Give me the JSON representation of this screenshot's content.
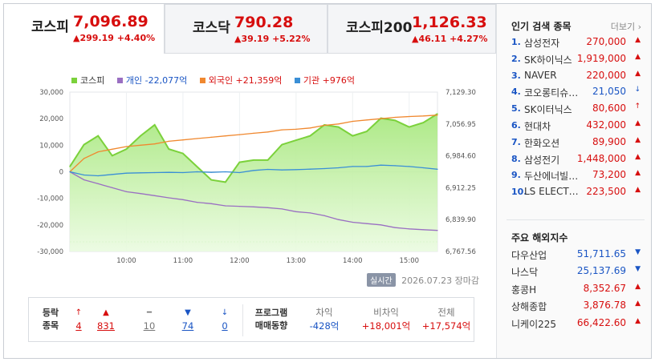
{
  "tabs": [
    {
      "name": "코스피",
      "value": "7,096.89",
      "change": "▲299.19 +4.40%"
    },
    {
      "name": "코스닥",
      "value": "790.28",
      "change": "▲39.19 +5.22%"
    },
    {
      "name": "코스피200",
      "value": "1,126.33",
      "change": "▲46.11 +4.27%"
    }
  ],
  "legend": [
    {
      "label": "코스피",
      "color": "#7bd13b"
    },
    {
      "label": "개인 -22,077억",
      "color": "#9a6fc2"
    },
    {
      "label": "외국인 +21,359억",
      "color": "#f0882f"
    },
    {
      "label": "기관 +976억",
      "color": "#3a8fd6"
    }
  ],
  "chart_data": {
    "type": "line",
    "x": [
      "09:00",
      "09:15",
      "09:30",
      "09:45",
      "10:00",
      "10:15",
      "10:30",
      "10:45",
      "11:00",
      "11:15",
      "11:30",
      "11:45",
      "12:00",
      "12:15",
      "12:30",
      "12:45",
      "13:00",
      "13:15",
      "13:30",
      "13:45",
      "14:00",
      "14:15",
      "14:30",
      "14:45",
      "15:00",
      "15:15",
      "15:30"
    ],
    "x_tick_labels": [
      "10:00",
      "11:00",
      "12:00",
      "13:00",
      "14:00",
      "15:00"
    ],
    "y_left_ticks": [
      "30,000",
      "20,000",
      "10,000",
      "0",
      "-10,000",
      "-20,000",
      "-30,000"
    ],
    "y_right_ticks": [
      "7,129.30",
      "7,056.95",
      "6,984.60",
      "6,912.25",
      "6,839.90",
      "6,767.56"
    ],
    "ylim_left": [
      -30000,
      30000
    ],
    "ylim_right": [
      6767.56,
      7129.3
    ],
    "series": [
      {
        "name": "코스피",
        "axis": "right",
        "color": "#7bd13b",
        "values": [
          6960,
          7010,
          7030,
          6985,
          7000,
          7030,
          7055,
          7000,
          6990,
          6960,
          6930,
          6925,
          6970,
          6975,
          6975,
          7010,
          7020,
          7030,
          7055,
          7050,
          7030,
          7040,
          7070,
          7065,
          7050,
          7060,
          7080
        ]
      },
      {
        "name": "개인",
        "axis": "left",
        "color": "#9a6fc2",
        "values": [
          0,
          -3000,
          -4500,
          -6000,
          -7500,
          -8200,
          -9000,
          -9800,
          -10500,
          -11500,
          -12000,
          -12800,
          -13000,
          -13200,
          -13500,
          -14000,
          -15000,
          -15500,
          -16500,
          -18000,
          -19000,
          -19500,
          -20000,
          -21000,
          -21500,
          -21800,
          -22077
        ]
      },
      {
        "name": "외국인",
        "axis": "left",
        "color": "#f0882f",
        "values": [
          0,
          5000,
          7500,
          8500,
          9500,
          10000,
          10500,
          11500,
          12000,
          12500,
          13000,
          13500,
          14000,
          14500,
          15000,
          15800,
          16000,
          16500,
          17500,
          18000,
          19000,
          19500,
          20000,
          20500,
          20800,
          21000,
          21359
        ]
      },
      {
        "name": "기관",
        "axis": "left",
        "color": "#3a8fd6",
        "values": [
          0,
          -1200,
          -1500,
          -1000,
          -500,
          -400,
          -300,
          -200,
          -300,
          0,
          -200,
          0,
          -300,
          500,
          900,
          700,
          800,
          1000,
          1200,
          1500,
          2000,
          2000,
          2500,
          2300,
          2000,
          1500,
          976
        ]
      }
    ],
    "grid": true,
    "legend_position": "top"
  },
  "status": {
    "badge": "실시간",
    "date": "2026.07.23",
    "state": "장마감"
  },
  "breadth": {
    "label_line1": "등락",
    "label_line2": "종목",
    "items": [
      {
        "symbol": "↑",
        "count": "4",
        "tone": "red"
      },
      {
        "symbol": "▲",
        "count": "831",
        "tone": "red"
      },
      {
        "symbol": "━",
        "count": "10",
        "tone": "gray"
      },
      {
        "symbol": "▼",
        "count": "74",
        "tone": "blue"
      },
      {
        "symbol": "↓",
        "count": "0",
        "tone": "blue"
      }
    ]
  },
  "program": {
    "label_line1": "프로그램",
    "label_line2": "매매동향",
    "items": [
      {
        "label": "차익",
        "value": "-428억",
        "tone": "blue"
      },
      {
        "label": "비차익",
        "value": "+18,001억",
        "tone": "red"
      },
      {
        "label": "전체",
        "value": "+17,574억",
        "tone": "red"
      }
    ]
  },
  "popular": {
    "title": "인기 검색 종목",
    "more": "더보기",
    "items": [
      {
        "rank": "1.",
        "name": "삼성전자",
        "value": "270,000",
        "dir": "▲",
        "tone": "red"
      },
      {
        "rank": "2.",
        "name": "SK하이닉스",
        "value": "1,919,000",
        "dir": "▲",
        "tone": "red"
      },
      {
        "rank": "3.",
        "name": "NAVER",
        "value": "220,000",
        "dir": "▲",
        "tone": "red"
      },
      {
        "rank": "4.",
        "name": "코오롱티슈…",
        "value": "21,050",
        "dir": "↓",
        "tone": "blue"
      },
      {
        "rank": "5.",
        "name": "SK이터닉스",
        "value": "80,600",
        "dir": "↑",
        "tone": "red"
      },
      {
        "rank": "6.",
        "name": "현대차",
        "value": "432,000",
        "dir": "▲",
        "tone": "red"
      },
      {
        "rank": "7.",
        "name": "한화오션",
        "value": "89,900",
        "dir": "▲",
        "tone": "red"
      },
      {
        "rank": "8.",
        "name": "삼성전기",
        "value": "1,448,000",
        "dir": "▲",
        "tone": "red"
      },
      {
        "rank": "9.",
        "name": "두산에너빌…",
        "value": "73,200",
        "dir": "▲",
        "tone": "red"
      },
      {
        "rank": "10.",
        "name": "LS ELECT…",
        "value": "223,500",
        "dir": "▲",
        "tone": "red"
      }
    ]
  },
  "world": {
    "title": "주요 해외지수",
    "items": [
      {
        "name": "다우산업",
        "value": "51,711.65",
        "dir": "▼",
        "tone": "blue"
      },
      {
        "name": "나스닥",
        "value": "25,137.69",
        "dir": "▼",
        "tone": "blue"
      },
      {
        "name": "홍콩H",
        "value": "8,352.67",
        "dir": "▲",
        "tone": "red"
      },
      {
        "name": "상해종합",
        "value": "3,876.78",
        "dir": "▲",
        "tone": "red"
      },
      {
        "name": "니케이225",
        "value": "66,422.60",
        "dir": "▲",
        "tone": "red"
      }
    ]
  }
}
